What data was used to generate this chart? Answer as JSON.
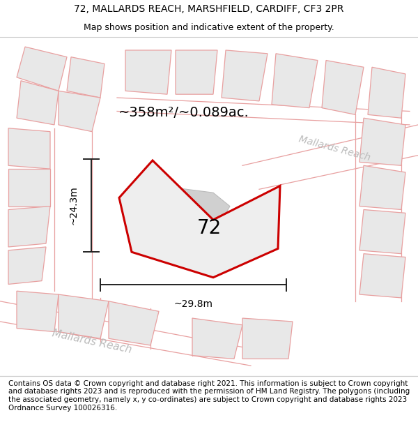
{
  "title_line1": "72, MALLARDS REACH, MARSHFIELD, CARDIFF, CF3 2PR",
  "title_line2": "Map shows position and indicative extent of the property.",
  "area_label": "~358m²/~0.089ac.",
  "label_72": "72",
  "dim_width": "~29.8m",
  "dim_height": "~24.3m",
  "road_label_bottom": "Mallards Reach",
  "road_label_right": "Mallards Reach",
  "footer_text": "Contains OS data © Crown copyright and database right 2021. This information is subject to Crown copyright and database rights 2023 and is reproduced with the permission of HM Land Registry. The polygons (including the associated geometry, namely x, y co-ordinates) are subject to Crown copyright and database rights 2023 Ordnance Survey 100026316.",
  "bg_color": "#ffffff",
  "plot_fill": "#e8e8e8",
  "plot_edge": "#e8a0a0",
  "property_fill": "#e8e8e8",
  "property_outline": "#cc0000",
  "building_fill": "#d0d0d0",
  "building_edge": "#bbbbbb",
  "dim_color": "#222222",
  "road_label_color": "#bbbbbb",
  "title_fontsize": 10,
  "subtitle_fontsize": 9,
  "area_fontsize": 14,
  "label72_fontsize": 20,
  "dim_fontsize": 10,
  "road_fontsize": 11,
  "footer_fontsize": 7.5
}
